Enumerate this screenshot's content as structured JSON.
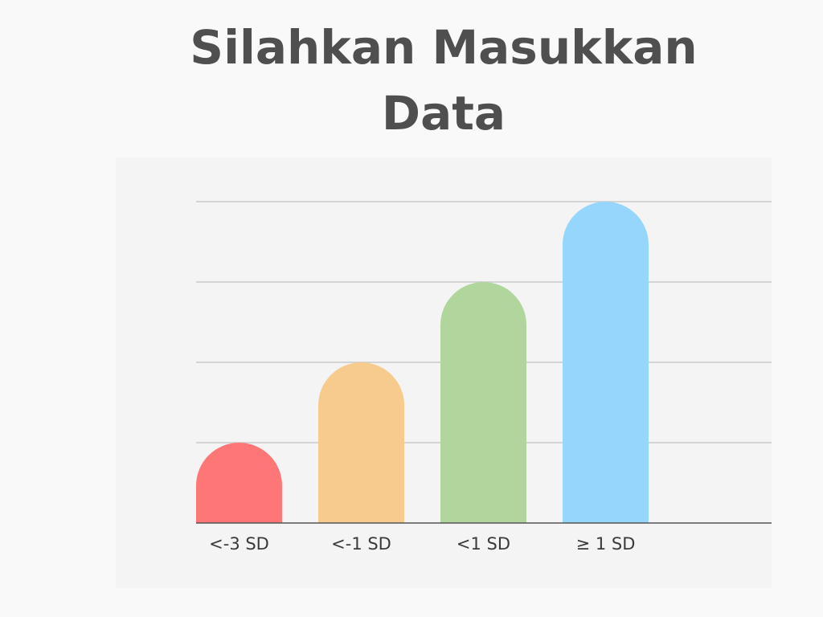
{
  "page": {
    "title": "Silahkan Masukkan Data"
  },
  "chart_data": {
    "type": "bar",
    "categories": [
      "<-3 SD",
      "<-1 SD",
      "<1 SD",
      "≥ 1 SD"
    ],
    "values": [
      1,
      2,
      3,
      4
    ],
    "colors": [
      "#ff7676",
      "#f7ca8e",
      "#b0d69e",
      "#97d6fc"
    ],
    "ylim": [
      0,
      4
    ],
    "y_gridlines": [
      1,
      2,
      3,
      4
    ],
    "grid": true,
    "bar_shape": "rounded-top",
    "title": "",
    "xlabel": "",
    "ylabel": ""
  }
}
